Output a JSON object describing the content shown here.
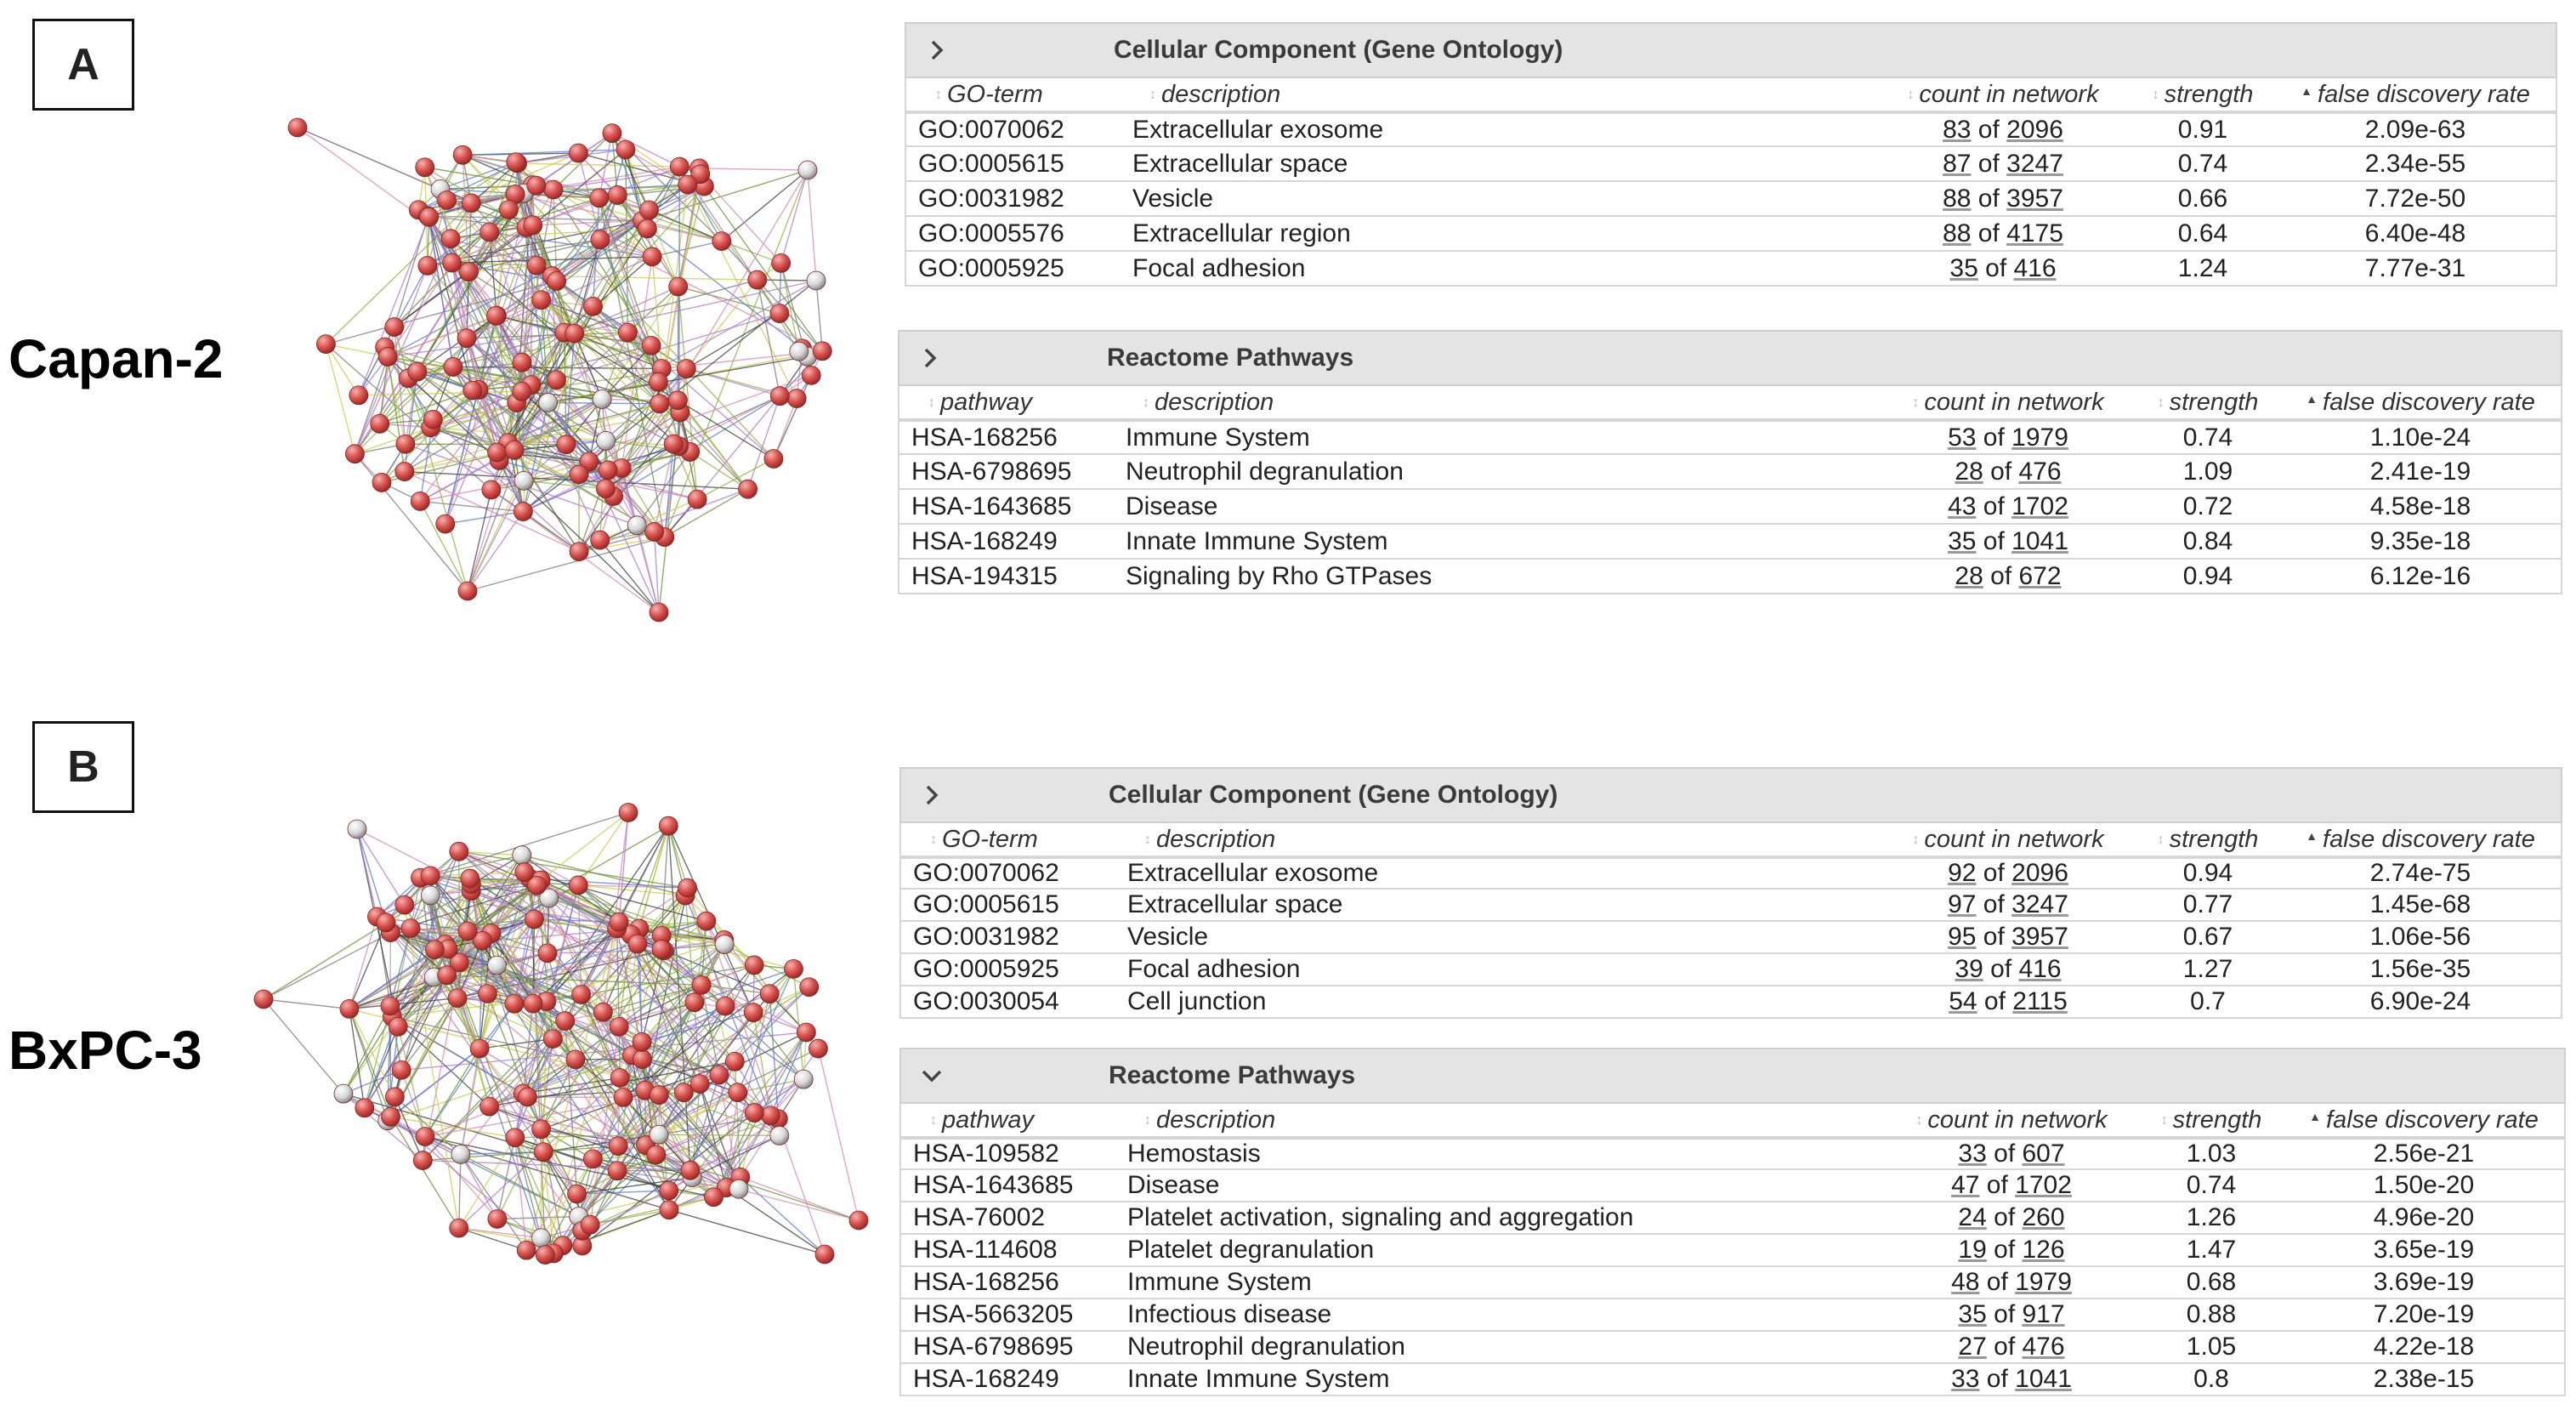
{
  "panels": [
    {
      "label": "A",
      "cell_line": "Capan-2",
      "tables": [
        {
          "title": "Cellular Component (Gene Ontology)",
          "expanded": false,
          "columns": [
            "GO-term",
            "description",
            "count in network",
            "strength",
            "false discovery rate"
          ],
          "rows": [
            {
              "id": "GO:0070062",
              "description": "Extracellular exosome",
              "count": "83",
              "total": "2096",
              "strength": "0.91",
              "fdr": "2.09e-63"
            },
            {
              "id": "GO:0005615",
              "description": "Extracellular space",
              "count": "87",
              "total": "3247",
              "strength": "0.74",
              "fdr": "2.34e-55"
            },
            {
              "id": "GO:0031982",
              "description": "Vesicle",
              "count": "88",
              "total": "3957",
              "strength": "0.66",
              "fdr": "7.72e-50"
            },
            {
              "id": "GO:0005576",
              "description": "Extracellular region",
              "count": "88",
              "total": "4175",
              "strength": "0.64",
              "fdr": "6.40e-48"
            },
            {
              "id": "GO:0005925",
              "description": "Focal adhesion",
              "count": "35",
              "total": "416",
              "strength": "1.24",
              "fdr": "7.77e-31"
            }
          ]
        },
        {
          "title": "Reactome Pathways",
          "expanded": false,
          "columns": [
            "pathway",
            "description",
            "count in network",
            "strength",
            "false discovery rate"
          ],
          "rows": [
            {
              "id": "HSA-168256",
              "description": "Immune System",
              "count": "53",
              "total": "1979",
              "strength": "0.74",
              "fdr": "1.10e-24"
            },
            {
              "id": "HSA-6798695",
              "description": "Neutrophil degranulation",
              "count": "28",
              "total": "476",
              "strength": "1.09",
              "fdr": "2.41e-19"
            },
            {
              "id": "HSA-1643685",
              "description": "Disease",
              "count": "43",
              "total": "1702",
              "strength": "0.72",
              "fdr": "4.58e-18"
            },
            {
              "id": "HSA-168249",
              "description": "Innate Immune System",
              "count": "35",
              "total": "1041",
              "strength": "0.84",
              "fdr": "9.35e-18"
            },
            {
              "id": "HSA-194315",
              "description": "Signaling by Rho GTPases",
              "count": "28",
              "total": "672",
              "strength": "0.94",
              "fdr": "6.12e-16"
            }
          ]
        }
      ]
    },
    {
      "label": "B",
      "cell_line": "BxPC-3",
      "tables": [
        {
          "title": "Cellular Component (Gene Ontology)",
          "expanded": false,
          "columns": [
            "GO-term",
            "description",
            "count in network",
            "strength",
            "false discovery rate"
          ],
          "rows": [
            {
              "id": "GO:0070062",
              "description": "Extracellular exosome",
              "count": "92",
              "total": "2096",
              "strength": "0.94",
              "fdr": "2.74e-75"
            },
            {
              "id": "GO:0005615",
              "description": "Extracellular space",
              "count": "97",
              "total": "3247",
              "strength": "0.77",
              "fdr": "1.45e-68"
            },
            {
              "id": "GO:0031982",
              "description": "Vesicle",
              "count": "95",
              "total": "3957",
              "strength": "0.67",
              "fdr": "1.06e-56"
            },
            {
              "id": "GO:0005925",
              "description": "Focal adhesion",
              "count": "39",
              "total": "416",
              "strength": "1.27",
              "fdr": "1.56e-35"
            },
            {
              "id": "GO:0030054",
              "description": "Cell junction",
              "count": "54",
              "total": "2115",
              "strength": "0.7",
              "fdr": "6.90e-24"
            }
          ]
        },
        {
          "title": "Reactome Pathways",
          "expanded": true,
          "columns": [
            "pathway",
            "description",
            "count in network",
            "strength",
            "false discovery rate"
          ],
          "rows": [
            {
              "id": "HSA-109582",
              "description": "Hemostasis",
              "count": "33",
              "total": "607",
              "strength": "1.03",
              "fdr": "2.56e-21"
            },
            {
              "id": "HSA-1643685",
              "description": "Disease",
              "count": "47",
              "total": "1702",
              "strength": "0.74",
              "fdr": "1.50e-20"
            },
            {
              "id": "HSA-76002",
              "description": "Platelet activation, signaling and aggregation",
              "count": "24",
              "total": "260",
              "strength": "1.26",
              "fdr": "4.96e-20"
            },
            {
              "id": "HSA-114608",
              "description": "Platelet degranulation",
              "count": "19",
              "total": "126",
              "strength": "1.47",
              "fdr": "3.65e-19"
            },
            {
              "id": "HSA-168256",
              "description": "Immune System",
              "count": "48",
              "total": "1979",
              "strength": "0.68",
              "fdr": "3.69e-19"
            },
            {
              "id": "HSA-5663205",
              "description": "Infectious disease",
              "count": "35",
              "total": "917",
              "strength": "0.88",
              "fdr": "7.20e-19"
            },
            {
              "id": "HSA-6798695",
              "description": "Neutrophil degranulation",
              "count": "27",
              "total": "476",
              "strength": "1.05",
              "fdr": "4.22e-18"
            },
            {
              "id": "HSA-168249",
              "description": "Innate Immune System",
              "count": "33",
              "total": "1041",
              "strength": "0.8",
              "fdr": "2.38e-15"
            }
          ]
        }
      ]
    }
  ],
  "colors": {
    "node_red": "#d9534f",
    "node_grey": "#d8d8d8",
    "header_bg": "#e4e4e4"
  }
}
